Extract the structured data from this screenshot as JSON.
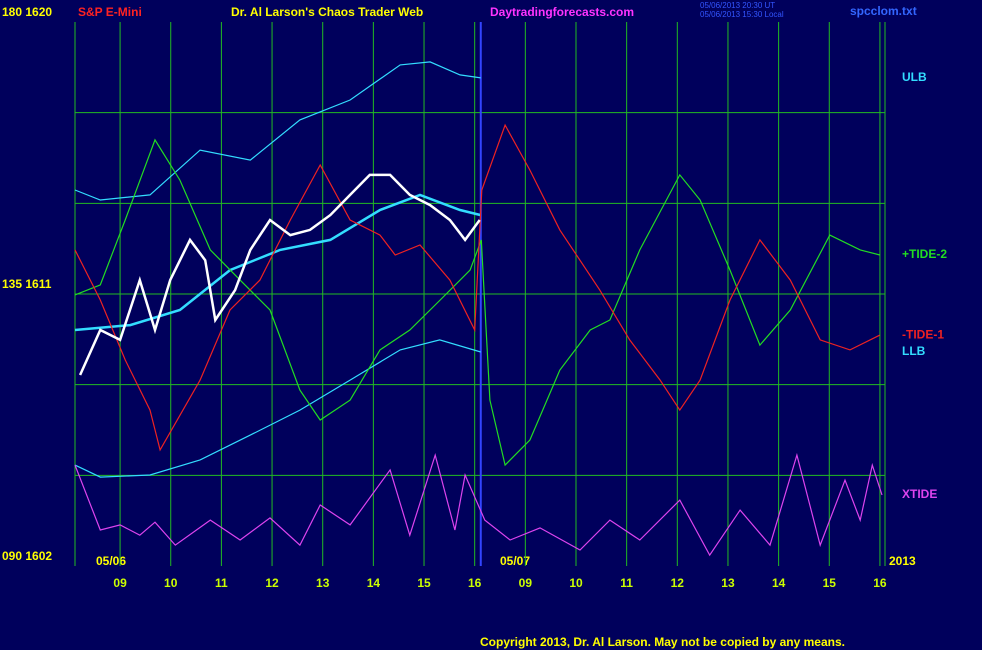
{
  "chart_data": {
    "type": "line",
    "title": "S&P E-Mini",
    "subtitle": "Dr. Al Larson's Chaos Trader Web",
    "site": "Daytradingforecasts.com",
    "timestamps": [
      "05/06/2013 20:30 UT",
      "05/06/2013 15:30 Local"
    ],
    "file": "spcclom.txt",
    "date_labels": [
      "05/06",
      "05/07",
      "2013"
    ],
    "copyright": "Copyright 2013, Dr. Al Larson. May not be copied by any means.",
    "xlim": [
      -0.89,
      15.1
    ],
    "xticks": [
      {
        "value": 0,
        "label": "09"
      },
      {
        "value": 1,
        "label": "10"
      },
      {
        "value": 2,
        "label": "11"
      },
      {
        "value": 3,
        "label": "12"
      },
      {
        "value": 4,
        "label": "13"
      },
      {
        "value": 5,
        "label": "14"
      },
      {
        "value": 6,
        "label": "15"
      },
      {
        "value": 7,
        "label": "16"
      },
      {
        "value": 8,
        "label": "09"
      },
      {
        "value": 9,
        "label": "10"
      },
      {
        "value": 10,
        "label": "11"
      },
      {
        "value": 11,
        "label": "12"
      },
      {
        "value": 12,
        "label": "13"
      },
      {
        "value": 13,
        "label": "14"
      },
      {
        "value": 14,
        "label": "15"
      },
      {
        "value": 15,
        "label": "16"
      }
    ],
    "ylim": [
      1602,
      1620
    ],
    "yticks": [
      {
        "value": 1620,
        "label": "180 1620"
      },
      {
        "value": 1611,
        "label": "135 1611"
      },
      {
        "value": 1602,
        "label": "090 1602"
      }
    ],
    "ygrid": [
      1605,
      1608,
      1611,
      1614,
      1617
    ],
    "divider_x": 7.12,
    "grid": true,
    "series": [
      {
        "name": "ULB",
        "color": "#33ddff",
        "x": [
          -0.89,
          -0.39,
          0.59,
          1.58,
          2.57,
          3.55,
          4.54,
          5.53,
          6.12,
          6.71,
          7.12
        ],
        "values": [
          1614.44,
          1614.11,
          1614.28,
          1615.76,
          1615.43,
          1616.76,
          1617.42,
          1618.58,
          1618.68,
          1618.25,
          1618.15
        ]
      },
      {
        "color": "#33ddff",
        "x": [
          -0.89,
          0.2,
          1.18,
          2.17,
          3.16,
          4.15,
          5.13,
          5.92,
          6.71,
          7.12
        ],
        "values": [
          1609.81,
          1609.97,
          1610.47,
          1611.79,
          1612.46,
          1612.79,
          1613.78,
          1614.28,
          1613.78,
          1613.61
        ]
      },
      {
        "name": "LLB",
        "color": "#33ddff",
        "x": [
          -0.89,
          -0.39,
          0.59,
          1.58,
          2.57,
          3.55,
          4.54,
          5.53,
          6.31,
          7.12
        ],
        "values": [
          1605.34,
          1604.94,
          1605.01,
          1605.51,
          1606.33,
          1607.16,
          1608.15,
          1609.15,
          1609.48,
          1609.08
        ]
      },
      {
        "name": "+TIDE-2",
        "color": "#22dd22",
        "x": [
          -0.89,
          -0.39,
          0.1,
          0.69,
          1.18,
          1.78,
          2.37,
          2.96,
          3.55,
          3.95,
          4.54,
          5.13,
          5.72,
          6.32,
          6.91,
          7.13,
          7.3,
          7.6,
          8.09,
          8.68,
          9.28,
          9.67,
          10.26,
          11.05,
          11.45,
          12.04,
          12.63,
          13.23,
          14.01,
          14.61,
          15.0
        ],
        "values": [
          1610.97,
          1611.3,
          1613.45,
          1616.1,
          1614.77,
          1612.46,
          1611.46,
          1610.47,
          1607.82,
          1606.83,
          1607.49,
          1609.15,
          1609.81,
          1610.8,
          1611.79,
          1612.79,
          1607.49,
          1605.34,
          1606.17,
          1608.48,
          1609.81,
          1610.14,
          1612.46,
          1614.94,
          1614.11,
          1611.79,
          1609.31,
          1610.47,
          1612.95,
          1612.46,
          1612.29
        ]
      },
      {
        "name": "-TIDE-1",
        "color": "#ee2222",
        "x": [
          -0.89,
          -0.39,
          0.1,
          0.59,
          0.79,
          1.58,
          2.17,
          2.76,
          3.36,
          3.95,
          4.54,
          5.13,
          5.43,
          5.92,
          6.51,
          7.0,
          7.14,
          7.6,
          8.09,
          8.68,
          9.47,
          10.06,
          10.66,
          11.05,
          11.45,
          12.04,
          12.63,
          13.23,
          13.82,
          14.41,
          15.0
        ],
        "values": [
          1612.46,
          1610.8,
          1608.82,
          1607.16,
          1605.84,
          1608.15,
          1610.47,
          1611.46,
          1613.45,
          1615.27,
          1613.45,
          1612.95,
          1612.29,
          1612.62,
          1611.46,
          1609.81,
          1614.44,
          1616.59,
          1615.1,
          1613.12,
          1611.13,
          1609.48,
          1608.15,
          1607.16,
          1608.15,
          1610.8,
          1612.79,
          1611.46,
          1609.48,
          1609.15,
          1609.64
        ]
      },
      {
        "name": "XTIDE",
        "color": "#dd44ee",
        "x": [
          -0.89,
          -0.39,
          0,
          0.39,
          0.69,
          1.09,
          1.78,
          2.37,
          2.96,
          3.55,
          3.95,
          4.54,
          5.33,
          5.72,
          6.22,
          6.61,
          6.81,
          7.2,
          7.7,
          8.29,
          9.08,
          9.67,
          10.26,
          11.05,
          11.64,
          12.24,
          12.83,
          13.36,
          13.82,
          14.31,
          14.61,
          14.85,
          15.04
        ],
        "values": [
          1605.34,
          1603.19,
          1603.36,
          1603.02,
          1603.45,
          1602.69,
          1603.52,
          1602.86,
          1603.59,
          1602.69,
          1604.02,
          1603.36,
          1605.18,
          1603.02,
          1605.67,
          1603.19,
          1605.01,
          1603.52,
          1602.86,
          1603.26,
          1602.53,
          1603.52,
          1602.86,
          1604.18,
          1602.36,
          1603.85,
          1602.69,
          1605.67,
          1602.69,
          1604.84,
          1603.52,
          1605.34,
          1604.35
        ]
      },
      {
        "color": "#ffffff",
        "x": [
          -0.79,
          -0.39,
          0,
          0.39,
          0.69,
          0.99,
          1.38,
          1.68,
          1.88,
          2.27,
          2.57,
          2.96,
          3.36,
          3.75,
          4.15,
          4.54,
          4.93,
          5.33,
          5.72,
          6.12,
          6.51,
          6.81,
          7.1
        ],
        "values": [
          1608.32,
          1609.81,
          1609.48,
          1611.46,
          1609.81,
          1611.46,
          1612.79,
          1612.12,
          1610.14,
          1611.13,
          1612.46,
          1613.45,
          1612.95,
          1613.12,
          1613.61,
          1614.28,
          1614.94,
          1614.94,
          1614.28,
          1613.94,
          1613.45,
          1612.79,
          1613.45
        ]
      }
    ]
  }
}
